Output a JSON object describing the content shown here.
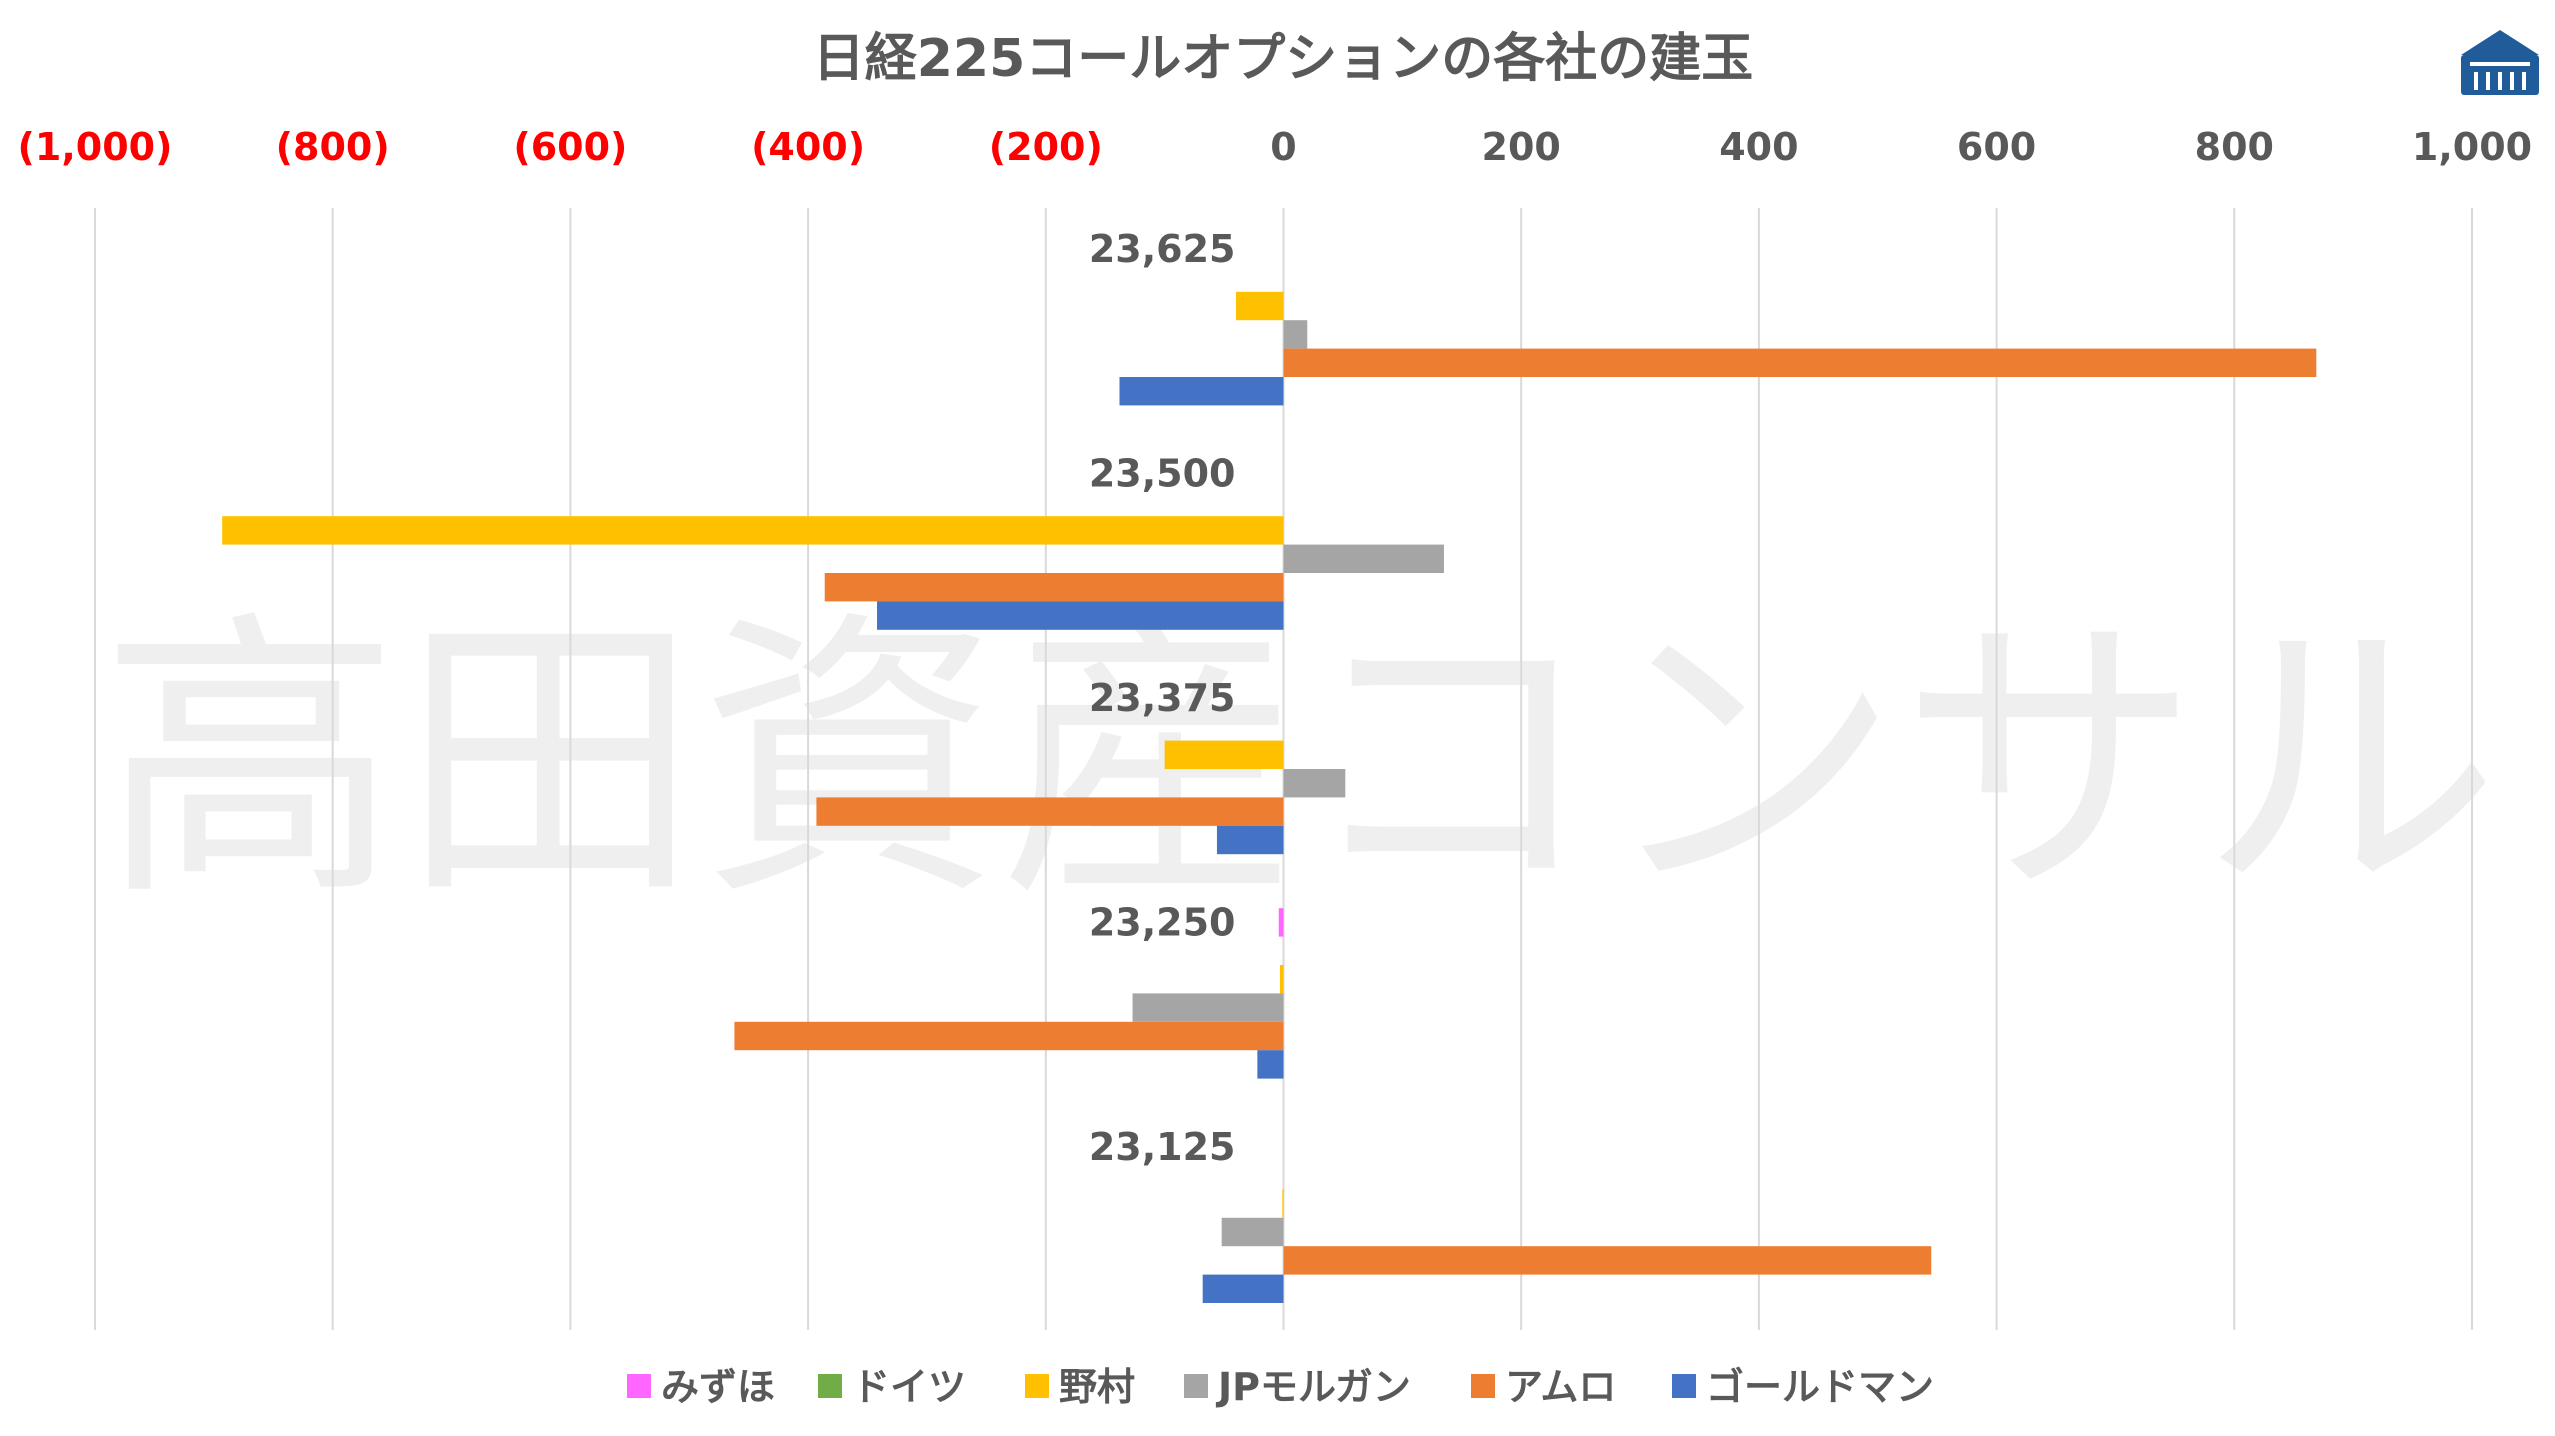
{
  "title": "日経225コールオプションの各社の建玉",
  "watermark": "高田資産コンサル",
  "colors": {
    "negative_tick": "#FF0000",
    "positive_tick": "#595959",
    "gridline": "#D9D9D9",
    "logo_blue": "#1F5C99"
  },
  "chart_data": {
    "type": "bar",
    "orientation": "horizontal",
    "title": "日経225コールオプションの各社の建玉",
    "xlim": [
      -1000,
      1000
    ],
    "x_ticks": [
      -1000,
      -800,
      -600,
      -400,
      -200,
      0,
      200,
      400,
      600,
      800,
      1000
    ],
    "x_tick_labels": [
      "(1,000)",
      "(800)",
      "(600)",
      "(400)",
      "(200)",
      "0",
      "200",
      "400",
      "600",
      "800",
      "1,000"
    ],
    "grid": true,
    "legend_position": "bottom",
    "categories": [
      "23,625",
      "23,500",
      "23,375",
      "23,250",
      "23,125"
    ],
    "series": [
      {
        "name": "みずほ",
        "color": "#FF66FF",
        "values": [
          0,
          0,
          0,
          -4,
          0
        ]
      },
      {
        "name": "ドイツ",
        "color": "#70AD47",
        "values": [
          0,
          0,
          0,
          0,
          0
        ]
      },
      {
        "name": "野村",
        "color": "#FFC000",
        "values": [
          -40,
          -893,
          -100,
          -3,
          -1
        ]
      },
      {
        "name": "JPモルガン",
        "color": "#A5A5A5",
        "values": [
          20,
          135,
          52,
          -127,
          -52
        ]
      },
      {
        "name": "アムロ",
        "color": "#ED7D31",
        "values": [
          869,
          -386,
          -393,
          -462,
          545
        ]
      },
      {
        "name": "ゴールドマン",
        "color": "#4472C4",
        "values": [
          -138,
          -342,
          -56,
          -22,
          -68
        ]
      }
    ]
  }
}
